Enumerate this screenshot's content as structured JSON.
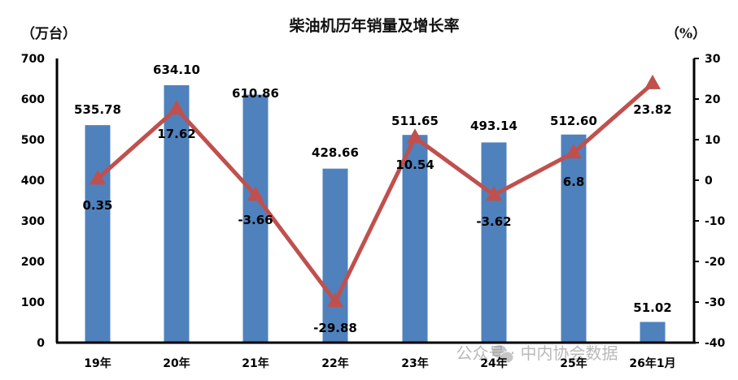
{
  "chart_data": {
    "type": "bar+line",
    "title": "柴油机历年销量及增长率",
    "categories": [
      "19年",
      "20年",
      "21年",
      "22年",
      "23年",
      "24年",
      "25年",
      "26年1月"
    ],
    "series": [
      {
        "name": "销量",
        "type": "bar",
        "axis": "left",
        "unit": "万台",
        "color": "#4F81BD",
        "values": [
          535.78,
          634.1,
          610.86,
          428.66,
          511.65,
          493.14,
          512.6,
          51.02
        ],
        "labels": [
          "535.78",
          "634.10",
          "610.86",
          "428.66",
          "511.65",
          "493.14",
          "512.60",
          "51.02"
        ]
      },
      {
        "name": "增长率",
        "type": "line",
        "axis": "right",
        "unit": "%",
        "color": "#C0504D",
        "marker": "triangle",
        "values": [
          0.35,
          17.62,
          -3.66,
          -29.88,
          10.54,
          -3.62,
          6.8,
          23.82
        ],
        "labels": [
          "0.35",
          "17.62",
          "-3.66",
          "-29.88",
          "10.54",
          "-3.62",
          "6.8",
          "23.82"
        ]
      }
    ],
    "ylabel_left": "（万台）",
    "ylabel_right": "（%）",
    "ylim_left": [
      0,
      700
    ],
    "yticks_left": [
      0,
      100,
      200,
      300,
      400,
      500,
      600,
      700
    ],
    "ylim_right": [
      -40,
      30
    ],
    "yticks_right": [
      30,
      20,
      10,
      0,
      -10,
      -20,
      -30,
      -40
    ],
    "grid": false,
    "legend": null
  },
  "watermark": "公众号 · 中内协会数据"
}
